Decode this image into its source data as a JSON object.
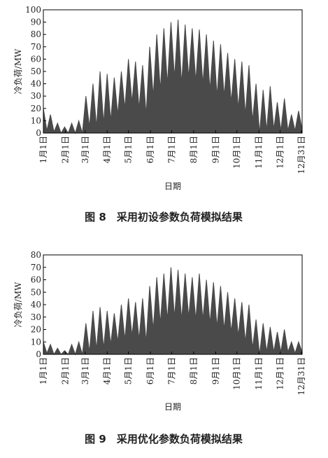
{
  "chart_data": [
    {
      "type": "area",
      "y_label": "冷负荷/MW",
      "x_label": "日期",
      "caption": "图 8　采用初设参数负荷模拟结果",
      "color": "#4a4a4a",
      "xlim": [
        0,
        365
      ],
      "ylim": [
        0,
        100
      ],
      "yticks": [
        0,
        10,
        20,
        30,
        40,
        50,
        60,
        70,
        80,
        90,
        100
      ],
      "xticks": [
        {
          "value": 0,
          "label": "1月1日"
        },
        {
          "value": 31,
          "label": "2月1日"
        },
        {
          "value": 59,
          "label": "3月1日"
        },
        {
          "value": 90,
          "label": "4月1日"
        },
        {
          "value": 120,
          "label": "5月1日"
        },
        {
          "value": 151,
          "label": "6月1日"
        },
        {
          "value": 181,
          "label": "7月1日"
        },
        {
          "value": 212,
          "label": "8月1日"
        },
        {
          "value": 243,
          "label": "9月1日"
        },
        {
          "value": 273,
          "label": "10月1日"
        },
        {
          "value": 304,
          "label": "11月1日"
        },
        {
          "value": 334,
          "label": "12月1日"
        },
        {
          "value": 364,
          "label": "12月31日"
        }
      ],
      "x": [
        0,
        5,
        10,
        15,
        20,
        25,
        30,
        35,
        40,
        45,
        50,
        55,
        60,
        65,
        70,
        75,
        80,
        85,
        90,
        95,
        100,
        105,
        110,
        115,
        120,
        125,
        130,
        135,
        140,
        145,
        150,
        155,
        160,
        165,
        170,
        175,
        180,
        185,
        190,
        195,
        200,
        205,
        210,
        215,
        220,
        225,
        230,
        235,
        240,
        245,
        250,
        255,
        260,
        265,
        270,
        275,
        280,
        285,
        290,
        295,
        300,
        305,
        310,
        315,
        320,
        325,
        330,
        335,
        340,
        345,
        350,
        355,
        360,
        365
      ],
      "values": [
        20,
        2,
        15,
        1,
        8,
        0,
        5,
        0,
        8,
        0,
        10,
        0,
        30,
        5,
        40,
        5,
        50,
        8,
        48,
        10,
        45,
        15,
        50,
        20,
        60,
        25,
        58,
        20,
        55,
        15,
        70,
        30,
        80,
        35,
        85,
        40,
        90,
        45,
        92,
        40,
        88,
        45,
        85,
        42,
        84,
        40,
        80,
        35,
        75,
        30,
        72,
        30,
        65,
        25,
        60,
        20,
        58,
        15,
        55,
        10,
        40,
        0,
        35,
        2,
        38,
        3,
        25,
        2,
        28,
        2,
        15,
        2,
        18,
        3
      ]
    },
    {
      "type": "area",
      "y_label": "冷负荷/MW",
      "x_label": "日期",
      "caption": "图 9　采用优化参数负荷模拟结果",
      "color": "#4a4a4a",
      "xlim": [
        0,
        365
      ],
      "ylim": [
        0,
        80
      ],
      "yticks": [
        0,
        10,
        20,
        30,
        40,
        50,
        60,
        70,
        80
      ],
      "xticks": [
        {
          "value": 0,
          "label": "1月1日"
        },
        {
          "value": 31,
          "label": "2月1日"
        },
        {
          "value": 59,
          "label": "3月1日"
        },
        {
          "value": 90,
          "label": "4月1日"
        },
        {
          "value": 120,
          "label": "5月1日"
        },
        {
          "value": 151,
          "label": "6月1日"
        },
        {
          "value": 181,
          "label": "7月1日"
        },
        {
          "value": 212,
          "label": "8月1日"
        },
        {
          "value": 243,
          "label": "9月1日"
        },
        {
          "value": 273,
          "label": "10月1日"
        },
        {
          "value": 304,
          "label": "11月1日"
        },
        {
          "value": 334,
          "label": "12月1日"
        },
        {
          "value": 364,
          "label": "12月31日"
        }
      ],
      "x": [
        0,
        5,
        10,
        15,
        20,
        25,
        30,
        35,
        40,
        45,
        50,
        55,
        60,
        65,
        70,
        75,
        80,
        85,
        90,
        95,
        100,
        105,
        110,
        115,
        120,
        125,
        130,
        135,
        140,
        145,
        150,
        155,
        160,
        165,
        170,
        175,
        180,
        185,
        190,
        195,
        200,
        205,
        210,
        215,
        220,
        225,
        230,
        235,
        240,
        245,
        250,
        255,
        260,
        265,
        270,
        275,
        280,
        285,
        290,
        295,
        300,
        305,
        310,
        315,
        320,
        325,
        330,
        335,
        340,
        345,
        350,
        355,
        360,
        365
      ],
      "values": [
        10,
        1,
        8,
        0,
        5,
        0,
        3,
        0,
        8,
        0,
        10,
        0,
        25,
        2,
        35,
        4,
        38,
        5,
        35,
        8,
        33,
        10,
        40,
        12,
        45,
        15,
        42,
        12,
        45,
        10,
        55,
        20,
        62,
        25,
        65,
        28,
        70,
        30,
        68,
        28,
        65,
        30,
        62,
        28,
        65,
        28,
        60,
        25,
        58,
        22,
        55,
        20,
        50,
        18,
        45,
        15,
        42,
        10,
        40,
        5,
        28,
        0,
        25,
        2,
        22,
        2,
        18,
        2,
        20,
        2,
        10,
        1,
        10,
        2
      ]
    }
  ]
}
